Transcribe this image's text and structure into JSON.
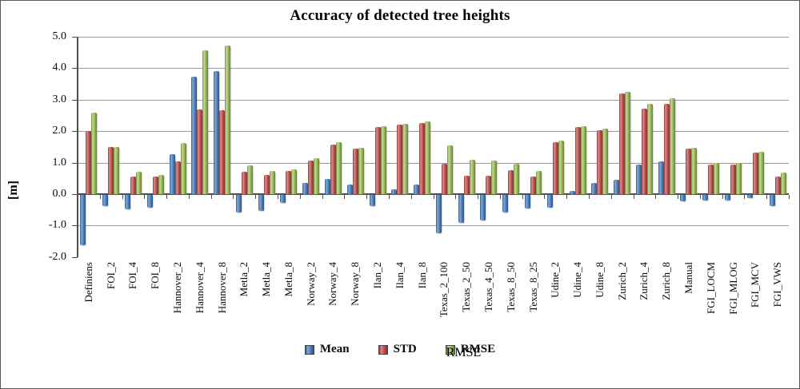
{
  "chart_data": {
    "type": "bar",
    "title": "Accuracy of detected tree heights",
    "ylabel": "[m]",
    "ylim": [
      -2.0,
      5.0
    ],
    "ytick_step": 1.0,
    "yticks": [
      "5.0",
      "4.0",
      "3.0",
      "2.0",
      "1.0",
      "0.0",
      "-1.0",
      "-2.0"
    ],
    "grid": true,
    "legend_position": "bottom",
    "categories": [
      "Definiens",
      "FOI_2",
      "FOI_4",
      "FOI_8",
      "Hannover_2",
      "Hannover_4",
      "Hannover_8",
      "Metla_2",
      "Metla_4",
      "Metla_8",
      "Norway_2",
      "Norway_4",
      "Norway_8",
      "Ilan_2",
      "Ilan_4",
      "Ilan_8",
      "Texas_2_100",
      "Texas_2_50",
      "Texas_4_50",
      "Texas_8_50",
      "Texas_8_25",
      "Udine_2",
      "Udine_4",
      "Udine_8",
      "Zurich_2",
      "Zurich_4",
      "Zurich_8",
      "Manual",
      "FGI_LOCM",
      "FGI_MLOG",
      "FGI_MCV",
      "FGI_VWS"
    ],
    "series": [
      {
        "name": "Mean",
        "color": "#4F81BD",
        "values": [
          -1.6,
          -0.35,
          -0.45,
          -0.4,
          1.28,
          3.72,
          3.9,
          -0.57,
          -0.5,
          -0.26,
          0.35,
          0.48,
          0.3,
          -0.35,
          0.16,
          0.3,
          -1.22,
          -0.9,
          -0.82,
          -0.55,
          -0.44,
          -0.4,
          0.1,
          0.35,
          0.45,
          0.93,
          1.03,
          -0.21,
          -0.18,
          -0.18,
          -0.1,
          -0.36
        ]
      },
      {
        "name": "STD",
        "color": "#C0504D",
        "values": [
          2.0,
          1.5,
          0.55,
          0.55,
          1.03,
          2.7,
          2.67,
          0.7,
          0.6,
          0.74,
          1.07,
          1.58,
          1.44,
          2.13,
          2.21,
          2.27,
          0.97,
          0.58,
          0.58,
          0.76,
          0.55,
          1.66,
          2.14,
          2.03,
          3.19,
          2.72,
          2.86,
          1.45,
          0.95,
          0.95,
          1.33,
          0.56
        ]
      },
      {
        "name": "RMSE",
        "color": "#9BBB59",
        "values": [
          2.6,
          1.5,
          0.7,
          0.62,
          1.63,
          4.58,
          4.72,
          0.91,
          0.74,
          0.79,
          1.14,
          1.65,
          1.47,
          2.15,
          2.24,
          2.3,
          1.55,
          1.1,
          1.06,
          0.96,
          0.74,
          1.7,
          2.16,
          2.07,
          3.25,
          2.87,
          3.04,
          1.47,
          0.98,
          0.98,
          1.35,
          0.68
        ]
      }
    ]
  }
}
